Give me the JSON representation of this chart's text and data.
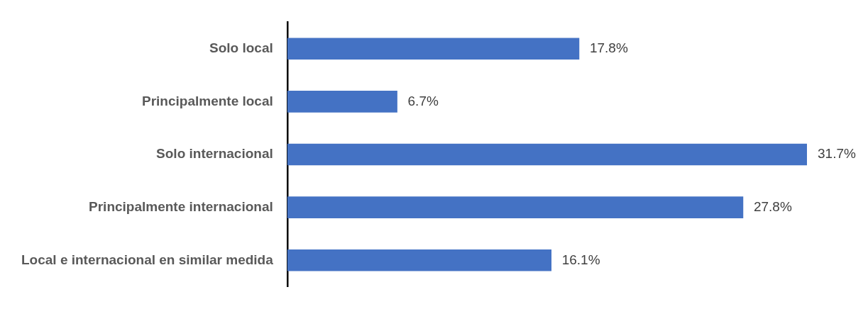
{
  "chart_data": {
    "type": "bar",
    "orientation": "horizontal",
    "categories": [
      "Solo local",
      "Principalmente local",
      "Solo internacional",
      "Principalmente internacional",
      "Local e internacional en similar medida"
    ],
    "values": [
      17.8,
      6.7,
      31.7,
      27.8,
      16.1
    ],
    "value_labels": [
      "17.8%",
      "6.7%",
      "31.7%",
      "27.8%",
      "16.1%"
    ],
    "color": "#4472c4",
    "legend": false
  }
}
